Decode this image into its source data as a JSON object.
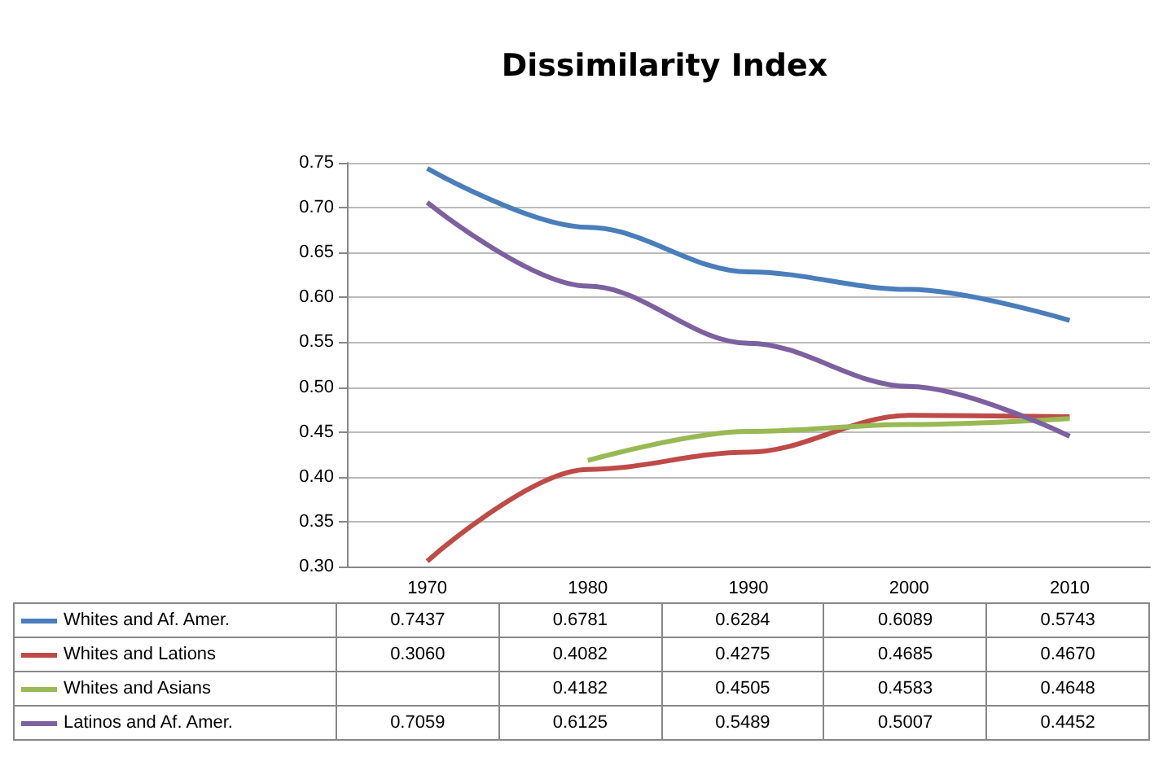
{
  "chart_data": {
    "type": "line",
    "title": "Dissimilarity Index",
    "categories": [
      "1970",
      "1980",
      "1990",
      "2000",
      "2010"
    ],
    "ylim": [
      0.3,
      0.75
    ],
    "yticks": [
      {
        "value": 0.3,
        "label": "0.30"
      },
      {
        "value": 0.35,
        "label": "0.35"
      },
      {
        "value": 0.4,
        "label": "0.40"
      },
      {
        "value": 0.45,
        "label": "0.45"
      },
      {
        "value": 0.5,
        "label": "0.50"
      },
      {
        "value": 0.55,
        "label": "0.55"
      },
      {
        "value": 0.6,
        "label": "0.60"
      },
      {
        "value": 0.65,
        "label": "0.65"
      },
      {
        "value": 0.7,
        "label": "0.70"
      },
      {
        "value": 0.75,
        "label": "0.75"
      }
    ],
    "grid": "y",
    "legend": "bottom",
    "marker": "none",
    "series": [
      {
        "name": "Whites and Af. Amer.",
        "color": "#4a7ebb",
        "values": [
          0.7437,
          0.6781,
          0.6284,
          0.6089,
          0.5743
        ],
        "value_labels": [
          "0.7437",
          "0.6781",
          "0.6284",
          "0.6089",
          "0.5743"
        ]
      },
      {
        "name": "Whites and Lations",
        "color": "#be4b48",
        "values": [
          0.306,
          0.4082,
          0.4275,
          0.4685,
          0.467
        ],
        "value_labels": [
          "0.3060",
          "0.4082",
          "0.4275",
          "0.4685",
          "0.4670"
        ]
      },
      {
        "name": "Whites and Asians",
        "color": "#98b954",
        "values": [
          null,
          0.4182,
          0.4505,
          0.4583,
          0.4648
        ],
        "value_labels": [
          null,
          "0.4182",
          "0.4505",
          "0.4583",
          "0.4648"
        ]
      },
      {
        "name": "Latinos and Af. Amer.",
        "color": "#7d60a0",
        "values": [
          0.7059,
          0.6125,
          0.5489,
          0.5007,
          0.4452
        ],
        "value_labels": [
          "0.7059",
          "0.6125",
          "0.5489",
          "0.5007",
          "0.4452"
        ]
      }
    ]
  }
}
